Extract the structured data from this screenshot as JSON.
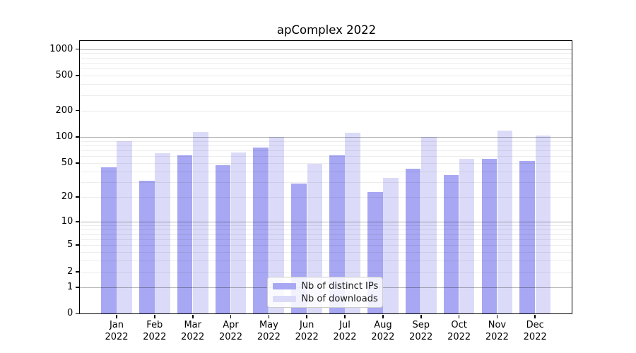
{
  "title": "apComplex 2022",
  "chart_data": {
    "type": "bar",
    "title": "apComplex 2022",
    "categories": [
      {
        "month": "Jan",
        "year": "2022"
      },
      {
        "month": "Feb",
        "year": "2022"
      },
      {
        "month": "Mar",
        "year": "2022"
      },
      {
        "month": "Apr",
        "year": "2022"
      },
      {
        "month": "May",
        "year": "2022"
      },
      {
        "month": "Jun",
        "year": "2022"
      },
      {
        "month": "Jul",
        "year": "2022"
      },
      {
        "month": "Aug",
        "year": "2022"
      },
      {
        "month": "Sep",
        "year": "2022"
      },
      {
        "month": "Oct",
        "year": "2022"
      },
      {
        "month": "Nov",
        "year": "2022"
      },
      {
        "month": "Dec",
        "year": "2022"
      }
    ],
    "series": [
      {
        "name": "Nb of distinct IPs",
        "color": "#a7a7f3",
        "values": [
          45,
          31,
          61,
          47,
          75,
          29,
          62,
          23,
          43,
          36,
          56,
          53
        ]
      },
      {
        "name": "Nb of downloads",
        "color": "#dbdbf9",
        "values": [
          90,
          65,
          115,
          66,
          100,
          49,
          111,
          34,
          100,
          56,
          119,
          103
        ]
      }
    ],
    "y_axis": {
      "scale": "log1p",
      "min": 0,
      "max": 1231,
      "tick_values": [
        0,
        1,
        2,
        5,
        10,
        20,
        50,
        100,
        200,
        500,
        1000
      ],
      "tick_labels": [
        "0",
        "1",
        "2",
        "5",
        "10",
        "20",
        "50",
        "100",
        "200",
        "500",
        "1000"
      ]
    },
    "grid": {
      "major_values": [
        1,
        10,
        100,
        1000
      ],
      "minor_decades": [
        1,
        10,
        100
      ],
      "minor_subs": [
        2,
        3,
        4,
        5,
        6,
        7,
        8,
        9
      ]
    },
    "legend": {
      "position": "bottom-center"
    }
  }
}
